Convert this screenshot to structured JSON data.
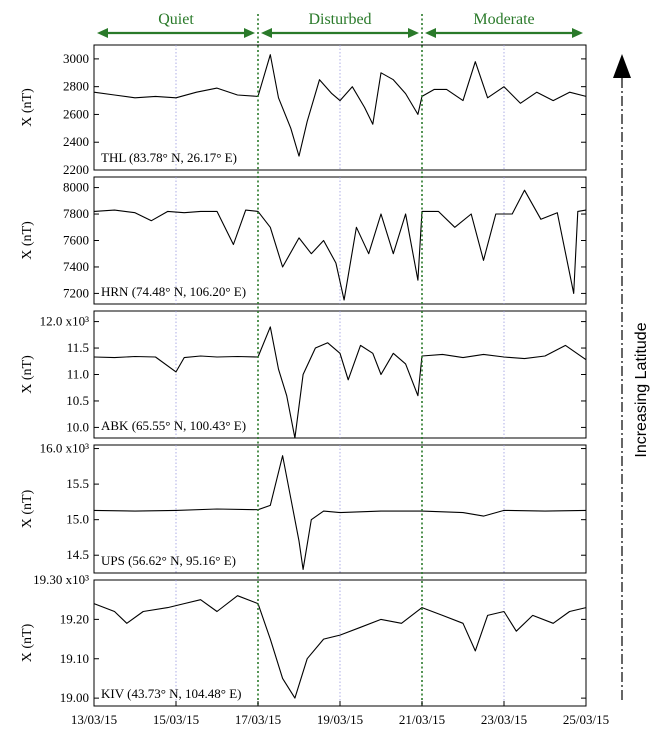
{
  "colors": {
    "series": "#000000",
    "phase": "#2a7a2a",
    "phase_divider": "#2a7a2a",
    "day_grid": "#9a9ae0",
    "axis": "#000000",
    "background": "#ffffff"
  },
  "phases": [
    {
      "label": "Quiet",
      "start": 0,
      "end": 4
    },
    {
      "label": "Disturbed",
      "start": 4,
      "end": 8
    },
    {
      "label": "Moderate",
      "start": 8,
      "end": 12
    }
  ],
  "side_label": "Increasing Latitude",
  "chart_data": {
    "type": "line",
    "title": "",
    "x_ticks": [
      "13/03/15",
      "15/03/15",
      "17/03/15",
      "19/03/15",
      "21/03/15",
      "23/03/15",
      "25/03/15"
    ],
    "x_range_days": [
      0,
      12
    ],
    "x_units": "days since 13/03/15",
    "phase_dividers_days": [
      4,
      8
    ],
    "day_gridlines_days": [
      2,
      6,
      10
    ],
    "panels": [
      {
        "station": "THL (83.78° N, 26.17° E)",
        "ylabel": "X (nT)",
        "multiplier": "",
        "ylim": [
          2200,
          3100
        ],
        "yticks": [
          2200,
          2400,
          2600,
          2800,
          3000
        ],
        "ytick_labels": [
          "2200",
          "2400",
          "2600",
          "2800",
          "3000"
        ],
        "points": [
          [
            0,
            2760
          ],
          [
            0.5,
            2740
          ],
          [
            1,
            2720
          ],
          [
            1.5,
            2730
          ],
          [
            2,
            2720
          ],
          [
            2.5,
            2760
          ],
          [
            3,
            2790
          ],
          [
            3.5,
            2740
          ],
          [
            4,
            2730
          ],
          [
            4.3,
            3030
          ],
          [
            4.5,
            2720
          ],
          [
            4.8,
            2500
          ],
          [
            5,
            2300
          ],
          [
            5.2,
            2550
          ],
          [
            5.5,
            2850
          ],
          [
            5.8,
            2750
          ],
          [
            6,
            2700
          ],
          [
            6.3,
            2800
          ],
          [
            6.6,
            2650
          ],
          [
            6.8,
            2530
          ],
          [
            7,
            2900
          ],
          [
            7.3,
            2850
          ],
          [
            7.6,
            2750
          ],
          [
            7.9,
            2600
          ],
          [
            8,
            2730
          ],
          [
            8.3,
            2780
          ],
          [
            8.6,
            2780
          ],
          [
            9,
            2700
          ],
          [
            9.3,
            2980
          ],
          [
            9.6,
            2720
          ],
          [
            10,
            2800
          ],
          [
            10.4,
            2680
          ],
          [
            10.8,
            2760
          ],
          [
            11.2,
            2700
          ],
          [
            11.6,
            2760
          ],
          [
            12,
            2730
          ]
        ]
      },
      {
        "station": "HRN (74.48° N, 106.20° E)",
        "ylabel": "X (nT)",
        "multiplier": "",
        "ylim": [
          7120,
          8080
        ],
        "yticks": [
          7200,
          7400,
          7600,
          7800,
          8000
        ],
        "ytick_labels": [
          "7200",
          "7400",
          "7600",
          "7800",
          "8000"
        ],
        "points": [
          [
            0,
            7820
          ],
          [
            0.5,
            7830
          ],
          [
            1,
            7810
          ],
          [
            1.4,
            7750
          ],
          [
            1.8,
            7820
          ],
          [
            2.2,
            7810
          ],
          [
            2.6,
            7820
          ],
          [
            3,
            7820
          ],
          [
            3.4,
            7570
          ],
          [
            3.7,
            7830
          ],
          [
            4,
            7820
          ],
          [
            4.3,
            7700
          ],
          [
            4.6,
            7400
          ],
          [
            5,
            7620
          ],
          [
            5.3,
            7500
          ],
          [
            5.6,
            7600
          ],
          [
            5.9,
            7430
          ],
          [
            6.1,
            7150
          ],
          [
            6.4,
            7700
          ],
          [
            6.7,
            7500
          ],
          [
            7,
            7800
          ],
          [
            7.3,
            7500
          ],
          [
            7.6,
            7800
          ],
          [
            7.9,
            7300
          ],
          [
            8,
            7820
          ],
          [
            8.4,
            7820
          ],
          [
            8.8,
            7700
          ],
          [
            9.2,
            7800
          ],
          [
            9.5,
            7450
          ],
          [
            9.8,
            7800
          ],
          [
            10.2,
            7800
          ],
          [
            10.5,
            7980
          ],
          [
            10.9,
            7760
          ],
          [
            11.3,
            7810
          ],
          [
            11.7,
            7200
          ],
          [
            11.8,
            7820
          ],
          [
            12,
            7830
          ]
        ]
      },
      {
        "station": "ABK (65.55° N, 100.43° E)",
        "ylabel": "X (nT)",
        "multiplier": "x10³",
        "ylim": [
          9.8,
          12.2
        ],
        "yticks": [
          10.0,
          10.5,
          11.0,
          11.5,
          12.0
        ],
        "ytick_labels": [
          "10.0",
          "10.5",
          "11.0",
          "11.5",
          "12.0 x10³"
        ],
        "points": [
          [
            0,
            11.33
          ],
          [
            0.5,
            11.32
          ],
          [
            1,
            11.34
          ],
          [
            1.5,
            11.33
          ],
          [
            2,
            11.05
          ],
          [
            2.2,
            11.32
          ],
          [
            2.6,
            11.35
          ],
          [
            3,
            11.33
          ],
          [
            3.5,
            11.34
          ],
          [
            4,
            11.33
          ],
          [
            4.3,
            11.9
          ],
          [
            4.5,
            11.1
          ],
          [
            4.7,
            10.6
          ],
          [
            4.9,
            9.8
          ],
          [
            5.1,
            11.0
          ],
          [
            5.4,
            11.5
          ],
          [
            5.7,
            11.6
          ],
          [
            6,
            11.4
          ],
          [
            6.2,
            10.9
          ],
          [
            6.5,
            11.55
          ],
          [
            6.8,
            11.4
          ],
          [
            7,
            11.0
          ],
          [
            7.3,
            11.4
          ],
          [
            7.6,
            11.2
          ],
          [
            7.9,
            10.6
          ],
          [
            8,
            11.35
          ],
          [
            8.5,
            11.38
          ],
          [
            9,
            11.32
          ],
          [
            9.5,
            11.38
          ],
          [
            10,
            11.33
          ],
          [
            10.5,
            11.3
          ],
          [
            11,
            11.35
          ],
          [
            11.5,
            11.55
          ],
          [
            12,
            11.28
          ]
        ]
      },
      {
        "station": "UPS (56.62° N, 95.16° E)",
        "ylabel": "X (nT)",
        "multiplier": "x10³",
        "ylim": [
          14.25,
          16.05
        ],
        "yticks": [
          14.5,
          15.0,
          15.5,
          16.0
        ],
        "ytick_labels": [
          "14.5",
          "15.0",
          "15.5",
          "16.0 x10³"
        ],
        "points": [
          [
            0,
            15.13
          ],
          [
            1,
            15.12
          ],
          [
            2,
            15.13
          ],
          [
            3,
            15.15
          ],
          [
            4,
            15.14
          ],
          [
            4.3,
            15.2
          ],
          [
            4.6,
            15.9
          ],
          [
            4.8,
            15.3
          ],
          [
            5,
            14.7
          ],
          [
            5.1,
            14.3
          ],
          [
            5.3,
            15.0
          ],
          [
            5.6,
            15.12
          ],
          [
            6,
            15.1
          ],
          [
            7,
            15.12
          ],
          [
            8,
            15.12
          ],
          [
            9,
            15.1
          ],
          [
            9.5,
            15.05
          ],
          [
            10,
            15.13
          ],
          [
            11,
            15.12
          ],
          [
            12,
            15.13
          ]
        ]
      },
      {
        "station": "KIV (43.73° N, 104.48° E)",
        "ylabel": "X (nT)",
        "multiplier": "x10³",
        "ylim": [
          18.98,
          19.3
        ],
        "yticks": [
          19.0,
          19.1,
          19.2,
          19.3
        ],
        "ytick_labels": [
          "19.00",
          "19.10",
          "19.20",
          "19.30 x10³"
        ],
        "points": [
          [
            0,
            19.24
          ],
          [
            0.5,
            19.22
          ],
          [
            0.8,
            19.19
          ],
          [
            1.2,
            19.22
          ],
          [
            1.8,
            19.23
          ],
          [
            2.2,
            19.24
          ],
          [
            2.6,
            19.25
          ],
          [
            3,
            19.22
          ],
          [
            3.5,
            19.26
          ],
          [
            4,
            19.24
          ],
          [
            4.3,
            19.15
          ],
          [
            4.6,
            19.05
          ],
          [
            4.9,
            19.0
          ],
          [
            5.2,
            19.1
          ],
          [
            5.6,
            19.15
          ],
          [
            6,
            19.16
          ],
          [
            6.5,
            19.18
          ],
          [
            7,
            19.2
          ],
          [
            7.5,
            19.19
          ],
          [
            8,
            19.23
          ],
          [
            8.5,
            19.21
          ],
          [
            9,
            19.19
          ],
          [
            9.3,
            19.12
          ],
          [
            9.6,
            19.21
          ],
          [
            10,
            19.22
          ],
          [
            10.3,
            19.17
          ],
          [
            10.7,
            19.21
          ],
          [
            11.2,
            19.19
          ],
          [
            11.6,
            19.22
          ],
          [
            12,
            19.23
          ]
        ]
      }
    ]
  }
}
